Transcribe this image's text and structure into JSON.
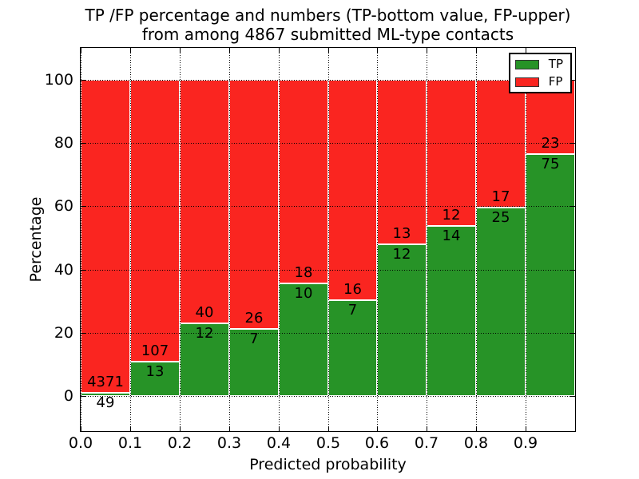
{
  "title": {
    "line1": "TP /FP percentage and numbers (TP-bottom value, FP-upper)",
    "line2": "from among 4867 submitted ML-type contacts"
  },
  "x_axis": {
    "label": "Predicted probability",
    "ticks": [
      "0.0",
      "0.1",
      "0.2",
      "0.3",
      "0.4",
      "0.5",
      "0.6",
      "0.7",
      "0.8",
      "0.9"
    ]
  },
  "y_axis": {
    "label": "Percentage",
    "ticks": [
      0,
      20,
      40,
      60,
      80,
      100
    ]
  },
  "legend": {
    "items": [
      {
        "label": "TP",
        "color": "#279327"
      },
      {
        "label": "FP",
        "color": "#fa2520"
      }
    ]
  },
  "chart_data": {
    "type": "bar",
    "variant": "stacked-100-percent",
    "title": "TP /FP percentage and numbers (TP-bottom value, FP-upper) from among 4867 submitted ML-type contacts",
    "xlabel": "Predicted probability",
    "ylabel": "Percentage",
    "xlim": [
      0.0,
      1.0
    ],
    "ylim": [
      -11,
      110
    ],
    "grid": "dotted",
    "legend_position": "upper-right",
    "bins_start": [
      0.0,
      0.1,
      0.2,
      0.3,
      0.4,
      0.5,
      0.6,
      0.7,
      0.8,
      0.9
    ],
    "bin_width": 0.1,
    "series": [
      {
        "name": "TP",
        "color": "#279327",
        "counts": [
          49,
          13,
          12,
          7,
          10,
          7,
          12,
          14,
          25,
          75
        ]
      },
      {
        "name": "FP",
        "color": "#fa2520",
        "counts": [
          4371,
          107,
          40,
          26,
          18,
          16,
          13,
          12,
          17,
          23
        ]
      }
    ],
    "tp_percent_computed": [
      1.11,
      10.83,
      23.08,
      21.21,
      35.71,
      30.43,
      48.0,
      53.85,
      59.52,
      76.53
    ],
    "total_contacts": 4867
  }
}
